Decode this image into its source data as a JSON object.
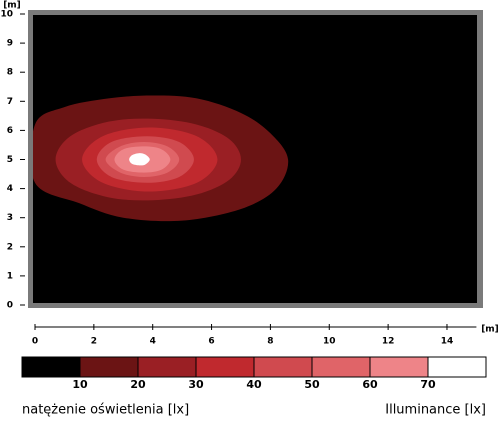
{
  "chart_data": {
    "type": "contour",
    "x_label": "[m]",
    "y_label": "[m]",
    "xlim": [
      0,
      15
    ],
    "ylim": [
      0,
      10
    ],
    "xticks": [
      0,
      2,
      4,
      6,
      8,
      10,
      12,
      14
    ],
    "yticks": [
      0,
      1,
      2,
      3,
      4,
      5,
      6,
      7,
      8,
      9,
      10
    ],
    "background": "#000000",
    "frame_color": "#7a7a7a",
    "contours": [
      {
        "color": "#6b1414",
        "x": [
          0,
          1,
          2.5,
          4,
          5.5,
          7,
          8,
          8.6,
          8.2,
          7,
          5,
          3,
          1.5,
          0
        ],
        "y": [
          6.2,
          6.8,
          7.1,
          7.2,
          7.1,
          6.6,
          5.9,
          5,
          4,
          3.3,
          2.9,
          3,
          3.5,
          4.2
        ]
      },
      {
        "color": "#9a1f24",
        "x": [
          0.7,
          1.2,
          2.5,
          4,
          5.5,
          6.6,
          7,
          6.6,
          5.5,
          4,
          2.5,
          1.2
        ],
        "y": [
          5,
          5.8,
          6.3,
          6.4,
          6.2,
          5.7,
          5,
          4.3,
          3.8,
          3.6,
          3.7,
          4.2
        ]
      },
      {
        "color": "#c0292e",
        "x": [
          6.2,
          5.5,
          3.9,
          2.3,
          1.6,
          2.3,
          3.9,
          5.5
        ],
        "y": [
          5,
          5.8,
          6.1,
          5.8,
          5,
          4.2,
          3.9,
          4.2
        ]
      },
      {
        "color": "#d04a4f",
        "x": [
          5.4,
          4.9,
          3.8,
          2.6,
          2.1,
          2.6,
          3.8,
          4.9
        ],
        "y": [
          5,
          5.6,
          5.8,
          5.6,
          5,
          4.4,
          4.2,
          4.4
        ]
      },
      {
        "color": "#e06468",
        "x": [
          4.9,
          4.5,
          3.7,
          2.9,
          2.4,
          2.9,
          3.7,
          4.5
        ],
        "y": [
          5,
          5.45,
          5.6,
          5.45,
          5,
          4.55,
          4.4,
          4.55
        ]
      },
      {
        "color": "#ee8488",
        "x": [
          4.6,
          4.3,
          3.7,
          3.0,
          2.7,
          3.0,
          3.7,
          4.3
        ],
        "y": [
          5,
          5.35,
          5.45,
          5.35,
          5,
          4.65,
          4.55,
          4.65
        ]
      },
      {
        "color": "#ffffff",
        "x": [
          3.9,
          3.75,
          3.55,
          3.3,
          3.2,
          3.3,
          3.55,
          3.75
        ],
        "y": [
          5,
          5.17,
          5.22,
          5.15,
          5,
          4.85,
          4.8,
          4.83
        ]
      }
    ],
    "colorbar": {
      "colors": [
        "#000000",
        "#6b1414",
        "#9a1f24",
        "#c0292e",
        "#d04a4f",
        "#e06468",
        "#ee8488",
        "#ffffff"
      ],
      "levels": [
        10,
        20,
        30,
        40,
        50,
        60,
        70
      ]
    },
    "label_pl": "natężenie oświetlenia [lx]",
    "label_en": "Illuminance [lx]"
  }
}
